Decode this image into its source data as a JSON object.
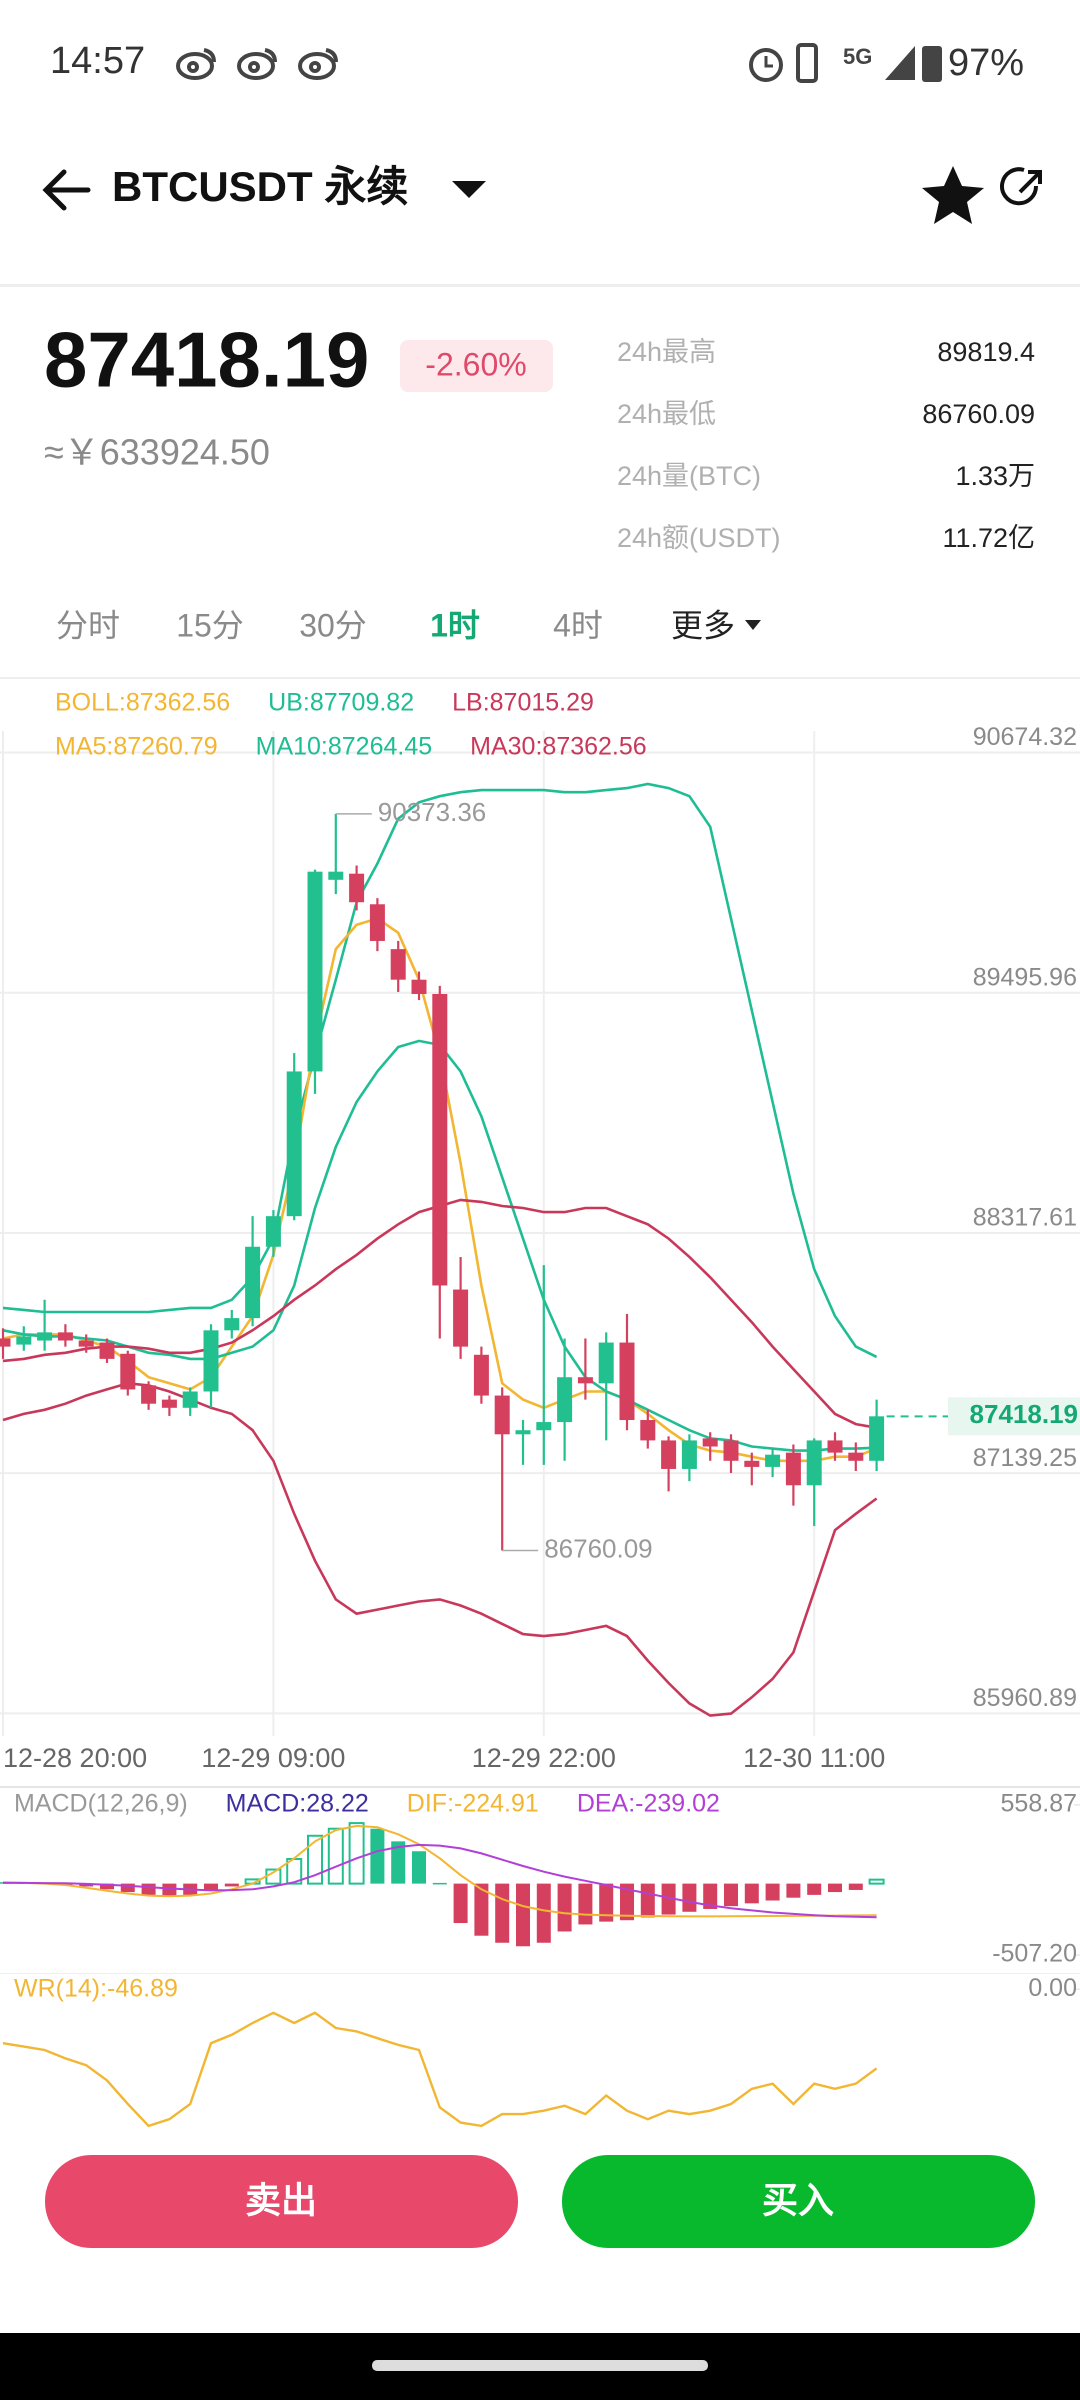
{
  "status_bar": {
    "time": "14:57",
    "network": "5G",
    "battery": "97%"
  },
  "header": {
    "title": "BTCUSDT 永续"
  },
  "ticker": {
    "price": "87418.19",
    "change": "-2.60%",
    "cny": "≈￥633924.50"
  },
  "stats": [
    {
      "label": "24h最高",
      "value": "89819.4"
    },
    {
      "label": "24h最低",
      "value": "86760.09"
    },
    {
      "label": "24h量(BTC)",
      "value": "1.33万"
    },
    {
      "label": "24h额(USDT)",
      "value": "11.72亿"
    }
  ],
  "tabs": [
    {
      "label": "分时",
      "active": false
    },
    {
      "label": "15分",
      "active": false
    },
    {
      "label": "30分",
      "active": false
    },
    {
      "label": "1时",
      "active": true
    },
    {
      "label": "4时",
      "active": false
    },
    {
      "label": "更多",
      "active": false
    }
  ],
  "actions": {
    "sell": "卖出",
    "buy": "买入"
  },
  "chart_data": [
    {
      "type": "candlestick",
      "categories": [
        "12-28 20:00",
        null,
        null,
        null,
        null,
        null,
        null,
        null,
        null,
        null,
        null,
        null,
        null,
        "12-29 09:00",
        null,
        null,
        null,
        null,
        null,
        null,
        null,
        null,
        null,
        null,
        null,
        null,
        "12-29 22:00",
        null,
        null,
        null,
        null,
        null,
        null,
        null,
        null,
        null,
        null,
        null,
        null,
        "12-30 11:00",
        null,
        null,
        null
      ],
      "open": [
        87800,
        87770,
        87790,
        87830,
        87790,
        87780,
        87725,
        87570,
        87500,
        87460,
        87540,
        87840,
        87900,
        88250,
        88400,
        89110,
        90050,
        90080,
        89930,
        89710,
        89560,
        89490,
        88040,
        87720,
        87520,
        87330,
        87350,
        87390,
        87610,
        87580,
        87780,
        87400,
        87300,
        87160,
        87310,
        87300,
        87200,
        87170,
        87240,
        87080,
        87300,
        87240,
        87200
      ],
      "high": [
        87850,
        87860,
        87990,
        87870,
        87820,
        87800,
        87740,
        87590,
        87520,
        87560,
        87870,
        87940,
        88400,
        88430,
        89200,
        90100,
        90373.36,
        90120,
        89960,
        89750,
        89600,
        89530,
        88200,
        87760,
        87560,
        87400,
        88160,
        87800,
        87800,
        87830,
        87920,
        87450,
        87320,
        87330,
        87340,
        87330,
        87240,
        87260,
        87280,
        87310,
        87340,
        87290,
        87500
      ],
      "low": [
        87700,
        87740,
        87740,
        87760,
        87730,
        87680,
        87520,
        87450,
        87420,
        87420,
        87460,
        87800,
        87860,
        88200,
        88380,
        89000,
        89980,
        89900,
        89700,
        89500,
        89460,
        87800,
        87700,
        87480,
        86760.09,
        87180,
        87180,
        87200,
        87500,
        87300,
        87350,
        87260,
        87050,
        87100,
        87200,
        87140,
        87080,
        87120,
        86980,
        86880,
        87200,
        87150,
        87150
      ],
      "close": [
        87760,
        87810,
        87830,
        87790,
        87760,
        87700,
        87550,
        87480,
        87460,
        87540,
        87840,
        87900,
        88250,
        88400,
        89110,
        90090,
        90090,
        89940,
        89750,
        89560,
        89490,
        88060,
        87760,
        87520,
        87330,
        87350,
        87390,
        87610,
        87580,
        87780,
        87400,
        87300,
        87160,
        87300,
        87270,
        87200,
        87170,
        87230,
        87080,
        87300,
        87240,
        87200,
        87418.19
      ],
      "up_color": "#22c08f",
      "down_color": "#d6405f",
      "indicator": {
        "label": "BOLL:87362.56",
        "color": "#f2b632"
      },
      "series": [
        {
          "name": "UB:87709.82",
          "color": "#1fbd94",
          "values": [
            87950,
            87940,
            87930,
            87930,
            87930,
            87930,
            87930,
            87930,
            87940,
            87950,
            87950,
            87990,
            88100,
            88290,
            88810,
            89190,
            89560,
            89940,
            90130,
            90350,
            90430,
            90460,
            90480,
            90490,
            90490,
            90490,
            90490,
            90480,
            90480,
            90490,
            90500,
            90520,
            90500,
            90460,
            90310,
            89860,
            89410,
            88960,
            88510,
            88140,
            87910,
            87760,
            87709.82
          ]
        },
        {
          "name": "LB:87015.29",
          "color": "#c8385a",
          "values": [
            87400,
            87430,
            87450,
            87480,
            87520,
            87550,
            87580,
            87570,
            87540,
            87500,
            87460,
            87430,
            87350,
            87200,
            86940,
            86710,
            86520,
            86450,
            86470,
            86490,
            86510,
            86520,
            86490,
            86450,
            86400,
            86350,
            86340,
            86350,
            86370,
            86390,
            86340,
            86220,
            86110,
            86010,
            85950,
            85960,
            86040,
            86130,
            86260,
            86560,
            86860,
            86940,
            87015.29
          ]
        },
        {
          "name": "MA5:87260.79",
          "color": "#f2b632",
          "values": [
            87800,
            87820,
            87820,
            87820,
            87790,
            87760,
            87690,
            87610,
            87580,
            87550,
            87610,
            87760,
            87910,
            88210,
            88660,
            89260,
            89710,
            89830,
            89860,
            89790,
            89560,
            89190,
            88660,
            88060,
            87580,
            87500,
            87460,
            87500,
            87540,
            87540,
            87500,
            87430,
            87350,
            87280,
            87250,
            87240,
            87220,
            87200,
            87200,
            87200,
            87220,
            87220,
            87260.79
          ]
        },
        {
          "name": "MA10:87264.45",
          "color": "#1fbd94",
          "values": [
            87840,
            87820,
            87810,
            87810,
            87800,
            87790,
            87760,
            87730,
            87720,
            87700,
            87700,
            87730,
            87760,
            87840,
            88060,
            88440,
            88740,
            88960,
            89110,
            89230,
            89260,
            89240,
            89110,
            88890,
            88590,
            88290,
            87990,
            87760,
            87610,
            87540,
            87500,
            87450,
            87400,
            87350,
            87310,
            87300,
            87270,
            87260,
            87250,
            87250,
            87260,
            87260,
            87264.45
          ]
        },
        {
          "name": "MA30:87362.56",
          "color": "#c8385a",
          "values": [
            87690,
            87700,
            87720,
            87730,
            87750,
            87760,
            87760,
            87750,
            87730,
            87730,
            87750,
            87780,
            87840,
            87910,
            87990,
            88060,
            88140,
            88210,
            88290,
            88360,
            88420,
            88450,
            88480,
            88470,
            88450,
            88440,
            88420,
            88420,
            88440,
            88440,
            88400,
            88360,
            88290,
            88200,
            88100,
            87990,
            87880,
            87760,
            87650,
            87540,
            87430,
            87380,
            87362.56
          ]
        }
      ],
      "annotations": [
        {
          "value": 90373.36,
          "label": "90373.36"
        },
        {
          "value": 86760.09,
          "label": "86760.09"
        }
      ],
      "current_price": {
        "value": 87418.19,
        "label": "87418.19"
      },
      "ylim": [
        85850,
        90780
      ],
      "yticks": [
        90674.32,
        89495.96,
        88317.61,
        87139.25,
        85960.89
      ],
      "grid": true
    },
    {
      "type": "macd",
      "title": "MACD(12,26,9)",
      "up_color": "#22c08f",
      "down_color": "#d6405f",
      "series": [
        {
          "name": "MACD:28.22",
          "color": "#3d2fa0",
          "type": "bar",
          "values": [
            10,
            8,
            5,
            -5,
            -20,
            -40,
            -60,
            -80,
            -90,
            -80,
            -50,
            -20,
            30,
            100,
            175,
            340,
            390,
            430,
            390,
            300,
            230,
            5,
            -280,
            -370,
            -420,
            -445,
            -420,
            -340,
            -290,
            -270,
            -260,
            -240,
            -220,
            -200,
            -180,
            -160,
            -140,
            -120,
            -100,
            -80,
            -60,
            -45,
            28.22
          ]
        },
        {
          "name": "DIF:-224.91",
          "color": "#f2b632",
          "type": "line",
          "values": [
            10,
            5,
            0,
            -10,
            -30,
            -50,
            -70,
            -85,
            -90,
            -85,
            -70,
            -40,
            0,
            80,
            180,
            300,
            380,
            410,
            400,
            350,
            280,
            180,
            60,
            -40,
            -110,
            -160,
            -190,
            -210,
            -220,
            -225,
            -228,
            -230,
            -232,
            -233,
            -233,
            -232,
            -231,
            -230,
            -229,
            -228,
            -227,
            -226,
            -224.91
          ]
        },
        {
          "name": "DEA:-239.02",
          "color": "#b23fd6",
          "type": "line",
          "values": [
            5,
            5,
            4,
            2,
            -2,
            -8,
            -15,
            -25,
            -35,
            -42,
            -48,
            -46,
            -40,
            -20,
            10,
            60,
            120,
            180,
            230,
            260,
            275,
            270,
            250,
            215,
            170,
            125,
            85,
            50,
            20,
            -10,
            -40,
            -70,
            -100,
            -130,
            -155,
            -175,
            -190,
            -205,
            -215,
            -225,
            -232,
            -236,
            -239.02
          ]
        }
      ],
      "ylim": [
        -642,
        665
      ],
      "yticks": [
        558.87,
        {
          "value": -507.2,
          "label": "-507.20"
        }
      ],
      "grid": false
    },
    {
      "type": "line",
      "series": [
        {
          "name": "WR(14):-46.89",
          "color": "#f2b632",
          "values": [
            -32,
            -34,
            -36,
            -41,
            -45,
            -54,
            -68,
            -81,
            -77,
            -68,
            -32,
            -27,
            -20,
            -14,
            -20,
            -14,
            -23,
            -25,
            -29,
            -33,
            -36,
            -70,
            -79,
            -81,
            -74,
            -74,
            -72,
            -69,
            -74,
            -63,
            -72,
            -77,
            -72,
            -74,
            -72,
            -68,
            -59,
            -56,
            -68,
            -56,
            -59,
            -56,
            -46.89
          ]
        }
      ],
      "ylim": [
        -84,
        9
      ],
      "yticks": [
        {
          "value": 0,
          "label": "0.00"
        }
      ],
      "grid": false
    }
  ]
}
